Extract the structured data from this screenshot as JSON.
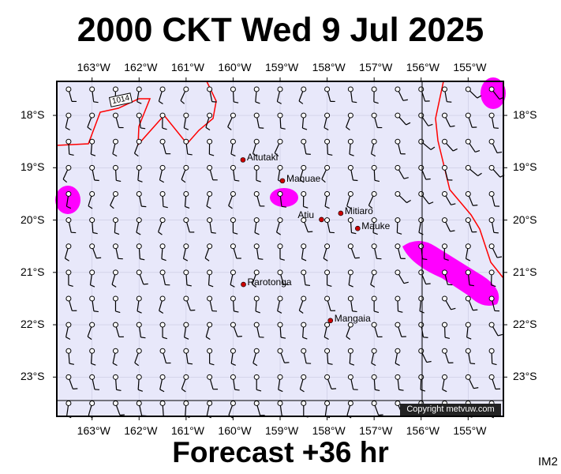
{
  "title": "2000 CKT Wed 9 Jul 2025",
  "subtitle": "Forecast +36 hr",
  "code": "IM2",
  "copyright": "Copyright metvuw.com",
  "isobar_label": "1014",
  "longitudes": [
    "163°W",
    "162°W",
    "161°W",
    "160°W",
    "159°W",
    "158°W",
    "157°W",
    "156°W",
    "155°W"
  ],
  "latitudes": [
    "18°S",
    "19°S",
    "20°S",
    "21°S",
    "22°S",
    "23°S"
  ],
  "places": [
    {
      "name": "Aitutaki",
      "lon": -159.79,
      "lat": -18.85
    },
    {
      "name": "Manuae",
      "lon": -158.95,
      "lat": -19.25
    },
    {
      "name": "Atiu",
      "lon": -158.12,
      "lat": -19.99
    },
    {
      "name": "Mitiaro",
      "lon": -157.71,
      "lat": -19.87
    },
    {
      "name": "Mauke",
      "lon": -157.35,
      "lat": -20.16
    },
    {
      "name": "Rarotonga",
      "lon": -159.78,
      "lat": -21.23
    },
    {
      "name": "Mangaia",
      "lon": -157.93,
      "lat": -21.92
    }
  ],
  "colors": {
    "ocean": "#e8e8fa",
    "isobar": "#ff0000",
    "rain": "#ff00ff",
    "city": "#cc0000"
  },
  "map_extent": {
    "lon_min": -163.75,
    "lon_max": -154.25,
    "lat_min": -23.75,
    "lat_max": -17.35
  }
}
